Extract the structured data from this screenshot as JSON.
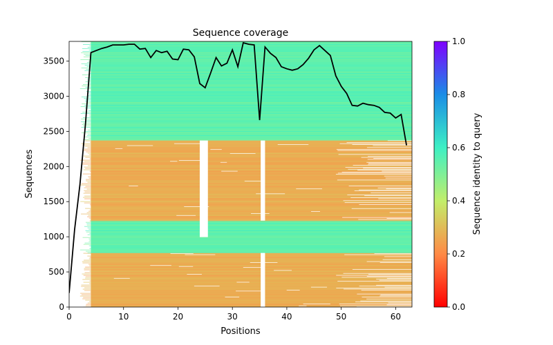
{
  "chart_data": {
    "type": "heatmap",
    "title": "Sequence coverage",
    "xlabel": "Positions",
    "ylabel": "Sequences",
    "xlim": [
      0,
      63
    ],
    "ylim": [
      0,
      3780
    ],
    "xticks": [
      0,
      10,
      20,
      30,
      40,
      50,
      60
    ],
    "yticks": [
      0,
      500,
      1000,
      1500,
      2000,
      2500,
      3000,
      3500
    ],
    "grid": false,
    "colorbar": {
      "label": "Sequence identity to query",
      "colormap": "rainbow_r",
      "range": [
        0,
        1
      ],
      "ticks": [
        0.0,
        0.2,
        0.4,
        0.6,
        0.8,
        1.0
      ]
    },
    "identity_bands": [
      {
        "from": 0,
        "to": 770,
        "identity": 0.27
      },
      {
        "from": 770,
        "to": 1230,
        "identity": 0.55
      },
      {
        "from": 1230,
        "to": 2370,
        "identity": 0.27
      },
      {
        "from": 2370,
        "to": 3780,
        "identity": 0.55
      }
    ],
    "coverage_series": {
      "name": "",
      "x": [
        0,
        1,
        2,
        3,
        4,
        5,
        6,
        7,
        8,
        9,
        10,
        11,
        12,
        13,
        14,
        15,
        16,
        17,
        18,
        19,
        20,
        21,
        22,
        23,
        24,
        25,
        26,
        27,
        28,
        29,
        30,
        31,
        32,
        33,
        34,
        35,
        36,
        37,
        38,
        39,
        40,
        41,
        42,
        43,
        44,
        45,
        46,
        47,
        48,
        49,
        50,
        51,
        52,
        53,
        54,
        55,
        56,
        57,
        58,
        59,
        60,
        61,
        62
      ],
      "y": [
        200,
        1100,
        1750,
        2600,
        3620,
        3650,
        3680,
        3700,
        3730,
        3730,
        3730,
        3740,
        3740,
        3670,
        3680,
        3550,
        3650,
        3620,
        3640,
        3530,
        3520,
        3670,
        3660,
        3560,
        3180,
        3120,
        3330,
        3550,
        3430,
        3470,
        3660,
        3420,
        3760,
        3740,
        3730,
        2660,
        3700,
        3610,
        3550,
        3420,
        3390,
        3370,
        3390,
        3450,
        3540,
        3660,
        3720,
        3650,
        3580,
        3290,
        3140,
        3040,
        2870,
        2860,
        2900,
        2880,
        2870,
        2840,
        2770,
        2760,
        2690,
        2740,
        2300
      ]
    }
  }
}
